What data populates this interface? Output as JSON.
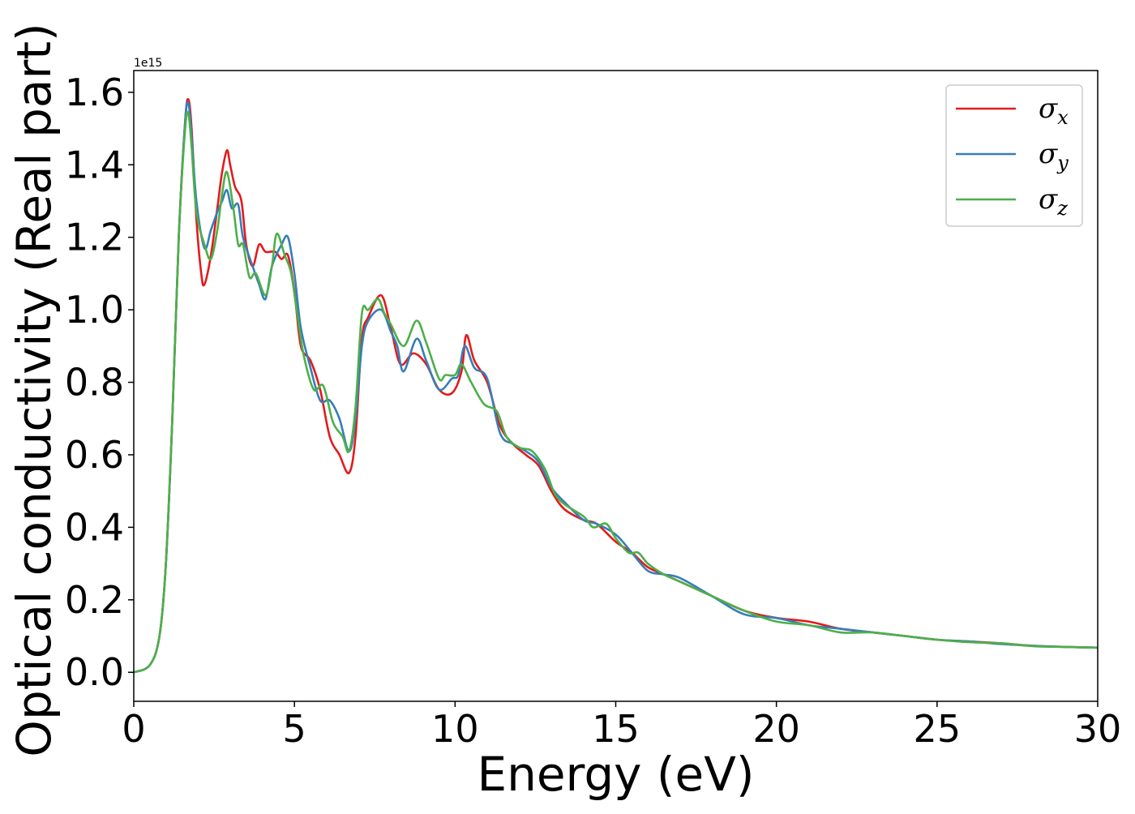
{
  "chart_data": {
    "type": "line",
    "xlabel": "Energy (eV)",
    "ylabel": "Optical conductivity (Real part)",
    "y_offset_label": "1e15",
    "xlim": [
      0,
      30
    ],
    "ylim": [
      -0.08,
      1.66
    ],
    "y_scale_factor": 1000000000000000.0,
    "x_ticks": [
      0,
      5,
      10,
      15,
      20,
      25,
      30
    ],
    "y_ticks": [
      0.0,
      0.2,
      0.4,
      0.6,
      0.8,
      1.0,
      1.2,
      1.4,
      1.6
    ],
    "x_tick_labels": [
      "0",
      "5",
      "10",
      "15",
      "20",
      "25",
      "30"
    ],
    "y_tick_labels": [
      "0.0",
      "0.2",
      "0.4",
      "0.6",
      "0.8",
      "1.0",
      "1.2",
      "1.4",
      "1.6"
    ],
    "grid": false,
    "legend_position": "top-right",
    "series": [
      {
        "name": "σx",
        "legend_symbol": "σ",
        "legend_sub": "x",
        "color": "#e41a1c",
        "points": [
          [
            0,
            0
          ],
          [
            0.5,
            0.02
          ],
          [
            0.8,
            0.1
          ],
          [
            1.0,
            0.3
          ],
          [
            1.2,
            0.7
          ],
          [
            1.4,
            1.2
          ],
          [
            1.6,
            1.52
          ],
          [
            1.7,
            1.58
          ],
          [
            1.8,
            1.5
          ],
          [
            1.95,
            1.25
          ],
          [
            2.1,
            1.1
          ],
          [
            2.2,
            1.07
          ],
          [
            2.4,
            1.15
          ],
          [
            2.6,
            1.28
          ],
          [
            2.75,
            1.38
          ],
          [
            2.9,
            1.44
          ],
          [
            3.0,
            1.4
          ],
          [
            3.15,
            1.34
          ],
          [
            3.35,
            1.3
          ],
          [
            3.5,
            1.18
          ],
          [
            3.7,
            1.12
          ],
          [
            3.9,
            1.18
          ],
          [
            4.1,
            1.16
          ],
          [
            4.4,
            1.16
          ],
          [
            4.6,
            1.14
          ],
          [
            4.8,
            1.15
          ],
          [
            5.0,
            1.05
          ],
          [
            5.2,
            0.9
          ],
          [
            5.5,
            0.86
          ],
          [
            5.8,
            0.78
          ],
          [
            6.1,
            0.65
          ],
          [
            6.4,
            0.6
          ],
          [
            6.7,
            0.55
          ],
          [
            6.9,
            0.65
          ],
          [
            7.1,
            0.92
          ],
          [
            7.3,
            0.98
          ],
          [
            7.7,
            1.04
          ],
          [
            8.0,
            0.95
          ],
          [
            8.3,
            0.85
          ],
          [
            8.7,
            0.88
          ],
          [
            9.1,
            0.85
          ],
          [
            9.5,
            0.78
          ],
          [
            9.9,
            0.77
          ],
          [
            10.2,
            0.83
          ],
          [
            10.35,
            0.93
          ],
          [
            10.6,
            0.86
          ],
          [
            11.0,
            0.8
          ],
          [
            11.4,
            0.68
          ],
          [
            11.8,
            0.63
          ],
          [
            12.2,
            0.6
          ],
          [
            12.6,
            0.57
          ],
          [
            13.0,
            0.5
          ],
          [
            13.4,
            0.45
          ],
          [
            14.0,
            0.42
          ],
          [
            14.4,
            0.41
          ],
          [
            15.0,
            0.36
          ],
          [
            15.5,
            0.33
          ],
          [
            16.0,
            0.29
          ],
          [
            16.5,
            0.27
          ],
          [
            17.0,
            0.25
          ],
          [
            18.0,
            0.21
          ],
          [
            19.0,
            0.17
          ],
          [
            20.0,
            0.15
          ],
          [
            21.0,
            0.14
          ],
          [
            22.0,
            0.12
          ],
          [
            23.0,
            0.11
          ],
          [
            24.0,
            0.1
          ],
          [
            25.0,
            0.09
          ],
          [
            26.0,
            0.085
          ],
          [
            27.0,
            0.08
          ],
          [
            28.0,
            0.073
          ],
          [
            29.0,
            0.07
          ],
          [
            30.0,
            0.068
          ]
        ]
      },
      {
        "name": "σy",
        "legend_symbol": "σ",
        "legend_sub": "y",
        "color": "#377eb8",
        "points": [
          [
            0,
            0
          ],
          [
            0.5,
            0.02
          ],
          [
            0.8,
            0.1
          ],
          [
            1.0,
            0.3
          ],
          [
            1.2,
            0.7
          ],
          [
            1.4,
            1.2
          ],
          [
            1.6,
            1.52
          ],
          [
            1.7,
            1.57
          ],
          [
            1.8,
            1.48
          ],
          [
            1.95,
            1.3
          ],
          [
            2.2,
            1.17
          ],
          [
            2.4,
            1.22
          ],
          [
            2.6,
            1.27
          ],
          [
            2.75,
            1.3
          ],
          [
            2.9,
            1.33
          ],
          [
            3.05,
            1.28
          ],
          [
            3.25,
            1.29
          ],
          [
            3.4,
            1.2
          ],
          [
            3.7,
            1.12
          ],
          [
            3.9,
            1.07
          ],
          [
            4.1,
            1.03
          ],
          [
            4.3,
            1.12
          ],
          [
            4.6,
            1.18
          ],
          [
            4.8,
            1.2
          ],
          [
            5.0,
            1.1
          ],
          [
            5.2,
            0.95
          ],
          [
            5.5,
            0.84
          ],
          [
            5.8,
            0.75
          ],
          [
            6.1,
            0.75
          ],
          [
            6.4,
            0.7
          ],
          [
            6.7,
            0.61
          ],
          [
            6.9,
            0.7
          ],
          [
            7.1,
            0.9
          ],
          [
            7.3,
            0.97
          ],
          [
            7.7,
            1.0
          ],
          [
            8.0,
            0.94
          ],
          [
            8.2,
            0.9
          ],
          [
            8.4,
            0.83
          ],
          [
            8.8,
            0.92
          ],
          [
            9.1,
            0.86
          ],
          [
            9.5,
            0.78
          ],
          [
            9.9,
            0.81
          ],
          [
            10.1,
            0.82
          ],
          [
            10.3,
            0.9
          ],
          [
            10.6,
            0.84
          ],
          [
            11.0,
            0.81
          ],
          [
            11.4,
            0.66
          ],
          [
            11.8,
            0.63
          ],
          [
            12.2,
            0.61
          ],
          [
            12.6,
            0.58
          ],
          [
            13.0,
            0.51
          ],
          [
            13.4,
            0.47
          ],
          [
            14.0,
            0.42
          ],
          [
            14.4,
            0.41
          ],
          [
            15.0,
            0.38
          ],
          [
            15.5,
            0.33
          ],
          [
            16.0,
            0.28
          ],
          [
            16.5,
            0.27
          ],
          [
            17.0,
            0.26
          ],
          [
            18.0,
            0.21
          ],
          [
            19.0,
            0.16
          ],
          [
            20.0,
            0.15
          ],
          [
            21.0,
            0.13
          ],
          [
            22.0,
            0.12
          ],
          [
            23.0,
            0.11
          ],
          [
            24.0,
            0.1
          ],
          [
            25.0,
            0.09
          ],
          [
            26.0,
            0.085
          ],
          [
            27.0,
            0.078
          ],
          [
            28.0,
            0.073
          ],
          [
            29.0,
            0.07
          ],
          [
            30.0,
            0.068
          ]
        ]
      },
      {
        "name": "σz",
        "legend_symbol": "σ",
        "legend_sub": "z",
        "color": "#4daf4a",
        "points": [
          [
            0,
            0
          ],
          [
            0.5,
            0.02
          ],
          [
            0.8,
            0.1
          ],
          [
            1.0,
            0.3
          ],
          [
            1.2,
            0.7
          ],
          [
            1.4,
            1.2
          ],
          [
            1.6,
            1.5
          ],
          [
            1.7,
            1.54
          ],
          [
            1.8,
            1.45
          ],
          [
            1.95,
            1.27
          ],
          [
            2.2,
            1.18
          ],
          [
            2.4,
            1.14
          ],
          [
            2.6,
            1.22
          ],
          [
            2.75,
            1.32
          ],
          [
            2.9,
            1.38
          ],
          [
            3.1,
            1.28
          ],
          [
            3.25,
            1.18
          ],
          [
            3.4,
            1.18
          ],
          [
            3.6,
            1.09
          ],
          [
            3.8,
            1.1
          ],
          [
            4.1,
            1.04
          ],
          [
            4.3,
            1.12
          ],
          [
            4.45,
            1.21
          ],
          [
            4.7,
            1.15
          ],
          [
            4.9,
            1.1
          ],
          [
            5.1,
            0.98
          ],
          [
            5.3,
            0.87
          ],
          [
            5.6,
            0.78
          ],
          [
            5.9,
            0.79
          ],
          [
            6.2,
            0.69
          ],
          [
            6.5,
            0.65
          ],
          [
            6.7,
            0.61
          ],
          [
            6.9,
            0.73
          ],
          [
            7.1,
            0.99
          ],
          [
            7.3,
            1.0
          ],
          [
            7.6,
            1.03
          ],
          [
            7.8,
            0.99
          ],
          [
            8.0,
            0.96
          ],
          [
            8.4,
            0.9
          ],
          [
            8.8,
            0.97
          ],
          [
            9.1,
            0.91
          ],
          [
            9.5,
            0.81
          ],
          [
            9.7,
            0.82
          ],
          [
            10.0,
            0.82
          ],
          [
            10.2,
            0.85
          ],
          [
            10.5,
            0.8
          ],
          [
            10.9,
            0.74
          ],
          [
            11.3,
            0.72
          ],
          [
            11.6,
            0.65
          ],
          [
            12.0,
            0.62
          ],
          [
            12.4,
            0.61
          ],
          [
            12.8,
            0.56
          ],
          [
            13.2,
            0.48
          ],
          [
            14.0,
            0.43
          ],
          [
            14.3,
            0.4
          ],
          [
            14.7,
            0.41
          ],
          [
            15.0,
            0.37
          ],
          [
            15.4,
            0.33
          ],
          [
            15.7,
            0.33
          ],
          [
            16.0,
            0.3
          ],
          [
            16.5,
            0.27
          ],
          [
            17.0,
            0.25
          ],
          [
            18.0,
            0.21
          ],
          [
            19.0,
            0.17
          ],
          [
            20.0,
            0.14
          ],
          [
            21.0,
            0.13
          ],
          [
            22.0,
            0.11
          ],
          [
            23.0,
            0.11
          ],
          [
            24.0,
            0.1
          ],
          [
            25.0,
            0.09
          ],
          [
            26.0,
            0.083
          ],
          [
            27.0,
            0.08
          ],
          [
            28.0,
            0.072
          ],
          [
            29.0,
            0.07
          ],
          [
            30.0,
            0.068
          ]
        ]
      }
    ]
  }
}
